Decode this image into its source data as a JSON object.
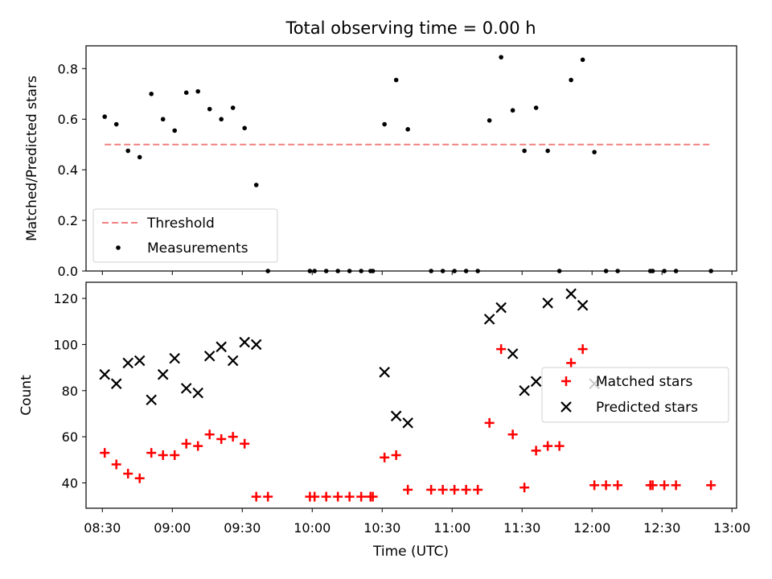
{
  "figure": {
    "title": "Total observing time = 0.00 h",
    "xlabel": "Time (UTC)",
    "x_tick_labels": [
      "08:30",
      "09:00",
      "09:30",
      "10:00",
      "10:30",
      "11:00",
      "11:30",
      "12:00",
      "12:30",
      "13:00"
    ]
  },
  "chart_data": [
    {
      "type": "scatter",
      "title": "Total observing time = 0.00 h",
      "ylabel": "Matched/Predicted stars",
      "xlim": [
        "08:23",
        "13:02"
      ],
      "ylim": [
        0,
        0.89
      ],
      "y_ticks": [
        0.0,
        0.2,
        0.4,
        0.6,
        0.8
      ],
      "y_tick_labels": [
        "0.0",
        "0.2",
        "0.4",
        "0.6",
        "0.8"
      ],
      "legend_position": "lower-left",
      "threshold": {
        "name": "Threshold",
        "value": 0.5,
        "x_start": "08:31",
        "x_end": "12:51",
        "color": "#f08080"
      },
      "series": [
        {
          "name": "Measurements",
          "color": "#000000",
          "points": [
            [
              "08:31",
              0.61
            ],
            [
              "08:36",
              0.58
            ],
            [
              "08:41",
              0.475
            ],
            [
              "08:46",
              0.45
            ],
            [
              "08:51",
              0.7
            ],
            [
              "08:56",
              0.6
            ],
            [
              "09:01",
              0.555
            ],
            [
              "09:06",
              0.705
            ],
            [
              "09:11",
              0.71
            ],
            [
              "09:16",
              0.64
            ],
            [
              "09:21",
              0.6
            ],
            [
              "09:26",
              0.645
            ],
            [
              "09:31",
              0.565
            ],
            [
              "09:36",
              0.34
            ],
            [
              "09:41",
              0.0
            ],
            [
              "09:59",
              0.0
            ],
            [
              "10:01",
              0.0
            ],
            [
              "10:06",
              0.0
            ],
            [
              "10:11",
              0.0
            ],
            [
              "10:16",
              0.0
            ],
            [
              "10:21",
              0.0
            ],
            [
              "10:25",
              0.0
            ],
            [
              "10:26",
              0.0
            ],
            [
              "10:31",
              0.58
            ],
            [
              "10:36",
              0.755
            ],
            [
              "10:41",
              0.56
            ],
            [
              "10:51",
              0.0
            ],
            [
              "10:56",
              0.0
            ],
            [
              "11:01",
              0.0
            ],
            [
              "11:06",
              0.0
            ],
            [
              "11:11",
              0.0
            ],
            [
              "11:16",
              0.595
            ],
            [
              "11:21",
              0.845
            ],
            [
              "11:26",
              0.635
            ],
            [
              "11:31",
              0.475
            ],
            [
              "11:36",
              0.645
            ],
            [
              "11:41",
              0.475
            ],
            [
              "11:46",
              0.0
            ],
            [
              "11:51",
              0.755
            ],
            [
              "11:56",
              0.835
            ],
            [
              "12:01",
              0.47
            ],
            [
              "12:06",
              0.0
            ],
            [
              "12:11",
              0.0
            ],
            [
              "12:25",
              0.0
            ],
            [
              "12:26",
              0.0
            ],
            [
              "12:31",
              0.0
            ],
            [
              "12:36",
              0.0
            ],
            [
              "12:51",
              0.0
            ]
          ]
        }
      ]
    },
    {
      "type": "scatter",
      "ylabel": "Count",
      "xlabel": "Time (UTC)",
      "xlim": [
        "08:23",
        "13:02"
      ],
      "ylim": [
        29,
        127
      ],
      "y_ticks": [
        40,
        60,
        80,
        100,
        120
      ],
      "y_tick_labels": [
        "40",
        "60",
        "80",
        "100",
        "120"
      ],
      "legend_position": "center-right",
      "series": [
        {
          "name": "Matched stars",
          "marker": "plus",
          "color": "#ff0000",
          "points": [
            [
              "08:31",
              53
            ],
            [
              "08:36",
              48
            ],
            [
              "08:41",
              44
            ],
            [
              "08:46",
              42
            ],
            [
              "08:51",
              53
            ],
            [
              "08:56",
              52
            ],
            [
              "09:01",
              52
            ],
            [
              "09:06",
              57
            ],
            [
              "09:11",
              56
            ],
            [
              "09:16",
              61
            ],
            [
              "09:21",
              59
            ],
            [
              "09:26",
              60
            ],
            [
              "09:31",
              57
            ],
            [
              "09:36",
              34
            ],
            [
              "09:41",
              34
            ],
            [
              "09:59",
              34
            ],
            [
              "10:01",
              34
            ],
            [
              "10:06",
              34
            ],
            [
              "10:11",
              34
            ],
            [
              "10:16",
              34
            ],
            [
              "10:21",
              34
            ],
            [
              "10:25",
              34
            ],
            [
              "10:26",
              34
            ],
            [
              "10:31",
              51
            ],
            [
              "10:36",
              52
            ],
            [
              "10:41",
              37
            ],
            [
              "10:51",
              37
            ],
            [
              "10:56",
              37
            ],
            [
              "11:01",
              37
            ],
            [
              "11:06",
              37
            ],
            [
              "11:11",
              37
            ],
            [
              "11:16",
              66
            ],
            [
              "11:21",
              98
            ],
            [
              "11:26",
              61
            ],
            [
              "11:31",
              38
            ],
            [
              "11:36",
              54
            ],
            [
              "11:41",
              56
            ],
            [
              "11:46",
              56
            ],
            [
              "11:51",
              92
            ],
            [
              "11:56",
              98
            ],
            [
              "12:01",
              39
            ],
            [
              "12:06",
              39
            ],
            [
              "12:11",
              39
            ],
            [
              "12:25",
              39
            ],
            [
              "12:26",
              39
            ],
            [
              "12:31",
              39
            ],
            [
              "12:36",
              39
            ],
            [
              "12:51",
              39
            ]
          ]
        },
        {
          "name": "Predicted stars",
          "marker": "x",
          "color": "#000000",
          "points": [
            [
              "08:31",
              87
            ],
            [
              "08:36",
              83
            ],
            [
              "08:41",
              92
            ],
            [
              "08:46",
              93
            ],
            [
              "08:51",
              76
            ],
            [
              "08:56",
              87
            ],
            [
              "09:01",
              94
            ],
            [
              "09:06",
              81
            ],
            [
              "09:11",
              79
            ],
            [
              "09:16",
              95
            ],
            [
              "09:21",
              99
            ],
            [
              "09:26",
              93
            ],
            [
              "09:31",
              101
            ],
            [
              "09:36",
              100
            ],
            [
              "10:31",
              88
            ],
            [
              "10:36",
              69
            ],
            [
              "10:41",
              66
            ],
            [
              "11:16",
              111
            ],
            [
              "11:21",
              116
            ],
            [
              "11:26",
              96
            ],
            [
              "11:31",
              80
            ],
            [
              "11:36",
              84
            ],
            [
              "11:41",
              118
            ],
            [
              "11:51",
              122
            ],
            [
              "11:56",
              117
            ],
            [
              "12:01",
              83
            ]
          ]
        }
      ]
    }
  ]
}
